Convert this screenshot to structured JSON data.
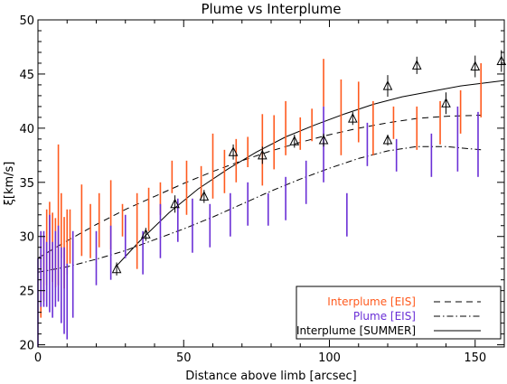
{
  "chart_data": {
    "type": "scatter",
    "title": "Plume vs Interplume",
    "xlabel": "Distance above limb [arcsec]",
    "ylabel": "ξ[km/s]",
    "xlim": [
      0,
      160
    ],
    "ylim": [
      19.8,
      50
    ],
    "x_ticks": [
      "0",
      "50",
      "100",
      "150"
    ],
    "y_ticks": [
      "20",
      "25",
      "30",
      "35",
      "40",
      "45",
      "50"
    ],
    "legend_position": "bottom-right",
    "colors": {
      "interplume_eis": "#ff5a1e",
      "plume_eis": "#6a2fd6",
      "summer": "#000000"
    },
    "series": [
      {
        "name": "Interplume [EIS]",
        "kind": "errorbars",
        "x": [
          1,
          2,
          3,
          4,
          5,
          6,
          7,
          8,
          9,
          10,
          11,
          15,
          18,
          21,
          25,
          29,
          34,
          38,
          42,
          46,
          51,
          56,
          60,
          64,
          68,
          72,
          77,
          81,
          85,
          90,
          94,
          98,
          104,
          110,
          115,
          122,
          130,
          138,
          145,
          152
        ],
        "y": [
          25.5,
          27,
          29,
          30,
          29,
          28.5,
          32,
          31,
          28.5,
          29.5,
          30,
          31.5,
          30.5,
          31.5,
          32,
          31.5,
          30.5,
          32.5,
          33.5,
          35.5,
          34.5,
          35,
          36.5,
          36,
          37,
          37.8,
          38,
          38.7,
          40,
          39.5,
          40.3,
          44.2,
          41,
          41.5,
          40,
          40.5,
          40,
          40.5,
          41.5,
          43.5
        ],
        "err": [
          3,
          3,
          3.5,
          3.2,
          3.2,
          3.2,
          6.5,
          3,
          3.3,
          3,
          2.5,
          3.3,
          2.5,
          2.5,
          3.2,
          1.5,
          3.5,
          2,
          1.5,
          1.5,
          2.5,
          1.5,
          3,
          2,
          2,
          1.4,
          3.3,
          2.5,
          2.5,
          1.5,
          1.5,
          2.2,
          3.5,
          2.8,
          2.5,
          1.5,
          2,
          2,
          2,
          2.5
        ]
      },
      {
        "name": "Plume [EIS]",
        "kind": "errorbars",
        "x": [
          0,
          1,
          2,
          3,
          4,
          5,
          6,
          7,
          8,
          9,
          10,
          12,
          20,
          25,
          30,
          36,
          42,
          48,
          53,
          59,
          66,
          72,
          79,
          85,
          92,
          98,
          106,
          113,
          123,
          135,
          144,
          151
        ],
        "y": [
          23.5,
          27,
          27,
          26.5,
          27.5,
          26,
          27,
          27.5,
          25.5,
          25,
          24,
          26.5,
          28,
          28.5,
          30,
          28.5,
          30.5,
          31.5,
          31,
          31,
          32,
          33,
          32.5,
          33.5,
          35,
          38.5,
          32,
          38.5,
          37.5,
          37.5,
          39,
          38.5
        ],
        "err": [
          4.5,
          3.5,
          3.5,
          3,
          4.5,
          3.5,
          3.5,
          3.5,
          3.5,
          4,
          3.5,
          4,
          2.5,
          2.5,
          2,
          2,
          2.5,
          2,
          2.5,
          2,
          2,
          2,
          1.5,
          2,
          2,
          3.5,
          2,
          2,
          1.5,
          2,
          3,
          3
        ]
      },
      {
        "name": "Interplume [SUMMER]",
        "kind": "triangles",
        "x": [
          27,
          37,
          47,
          57,
          67,
          77,
          88,
          98,
          108,
          120,
          130,
          140,
          150,
          159
        ],
        "y": [
          27,
          30.2,
          33,
          33.7,
          37.8,
          37.5,
          38.8,
          38.9,
          40.9,
          38.9,
          45.8,
          42.3,
          45.7,
          46.2
        ],
        "err": [
          0.6,
          0.6,
          0.8,
          0.6,
          0.7,
          0.8,
          0.6,
          0.6,
          0.6,
          0.5,
          0.8,
          1,
          1,
          1
        ],
        "extra_points": [
          {
            "x": 120,
            "y": 43.9,
            "err": 1
          }
        ]
      }
    ],
    "fits": [
      {
        "name": "Interplume [EIS] fit",
        "dash": "dashed",
        "x": [
          0,
          10,
          20,
          30,
          40,
          50,
          60,
          70,
          80,
          90,
          100,
          110,
          120,
          130,
          140,
          152
        ],
        "y": [
          28,
          29.6,
          31.1,
          32.5,
          33.7,
          34.9,
          36,
          37,
          37.9,
          38.7,
          39.4,
          40,
          40.5,
          40.9,
          41.1,
          41.2
        ]
      },
      {
        "name": "Plume [EIS] fit",
        "dash": "dashdot",
        "x": [
          0,
          10,
          20,
          30,
          40,
          50,
          60,
          70,
          80,
          90,
          100,
          110,
          120,
          130,
          140,
          152
        ],
        "y": [
          26.7,
          27.2,
          27.9,
          28.7,
          29.7,
          30.7,
          31.8,
          33,
          34.2,
          35.3,
          36.3,
          37.2,
          37.9,
          38.3,
          38.3,
          38
        ]
      },
      {
        "name": "Interplume [SUMMER] fit",
        "dash": "solid",
        "x": [
          27,
          35,
          45,
          55,
          65,
          75,
          85,
          95,
          105,
          115,
          125,
          135,
          145,
          160
        ],
        "y": [
          27.3,
          29.6,
          32.2,
          34.4,
          36.2,
          37.8,
          39.2,
          40.3,
          41.3,
          42.2,
          42.9,
          43.4,
          43.9,
          44.4
        ]
      }
    ],
    "legend": [
      {
        "label": "Interplume [EIS]",
        "color": "#ff5a1e",
        "line": "dashed"
      },
      {
        "label": "Plume [EIS]",
        "color": "#6a2fd6",
        "line": "dashdot"
      },
      {
        "label": "Interplume [SUMMER]",
        "color": "#000000",
        "line": "solid"
      }
    ]
  }
}
